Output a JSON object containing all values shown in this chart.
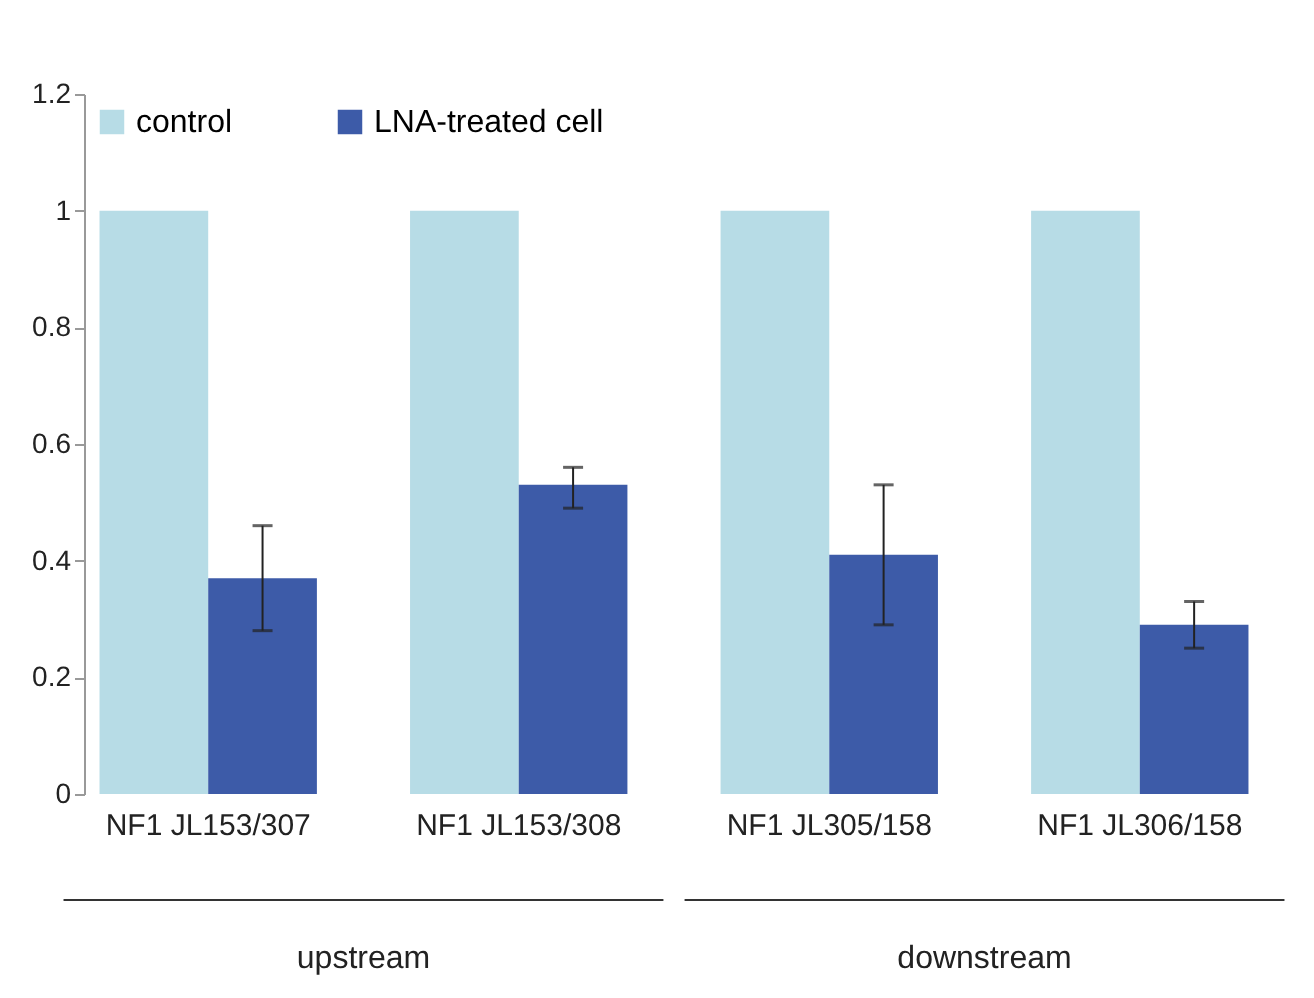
{
  "chart_data": {
    "type": "bar",
    "categories": [
      "NF1 JL153/307",
      "NF1 JL153/308",
      "NF1 JL305/158",
      "NF1 JL306/158"
    ],
    "series": [
      {
        "name": "control",
        "color": "#b7dce6",
        "values": [
          1,
          1,
          1,
          1
        ]
      },
      {
        "name": "LNA-treated cell",
        "color": "#3d5ba8",
        "values": [
          0.37,
          0.53,
          0.41,
          0.29
        ],
        "errors": [
          [
            0.28,
            0.46
          ],
          [
            0.49,
            0.56
          ],
          [
            0.29,
            0.53
          ],
          [
            0.25,
            0.33
          ]
        ]
      }
    ],
    "ylim": [
      0,
      1.2
    ],
    "yticks": [
      0,
      0.2,
      0.4,
      0.6,
      0.8,
      1,
      1.2
    ],
    "annotations": [
      "upstream",
      "downstream"
    ],
    "grid": false,
    "legend": "top left"
  }
}
